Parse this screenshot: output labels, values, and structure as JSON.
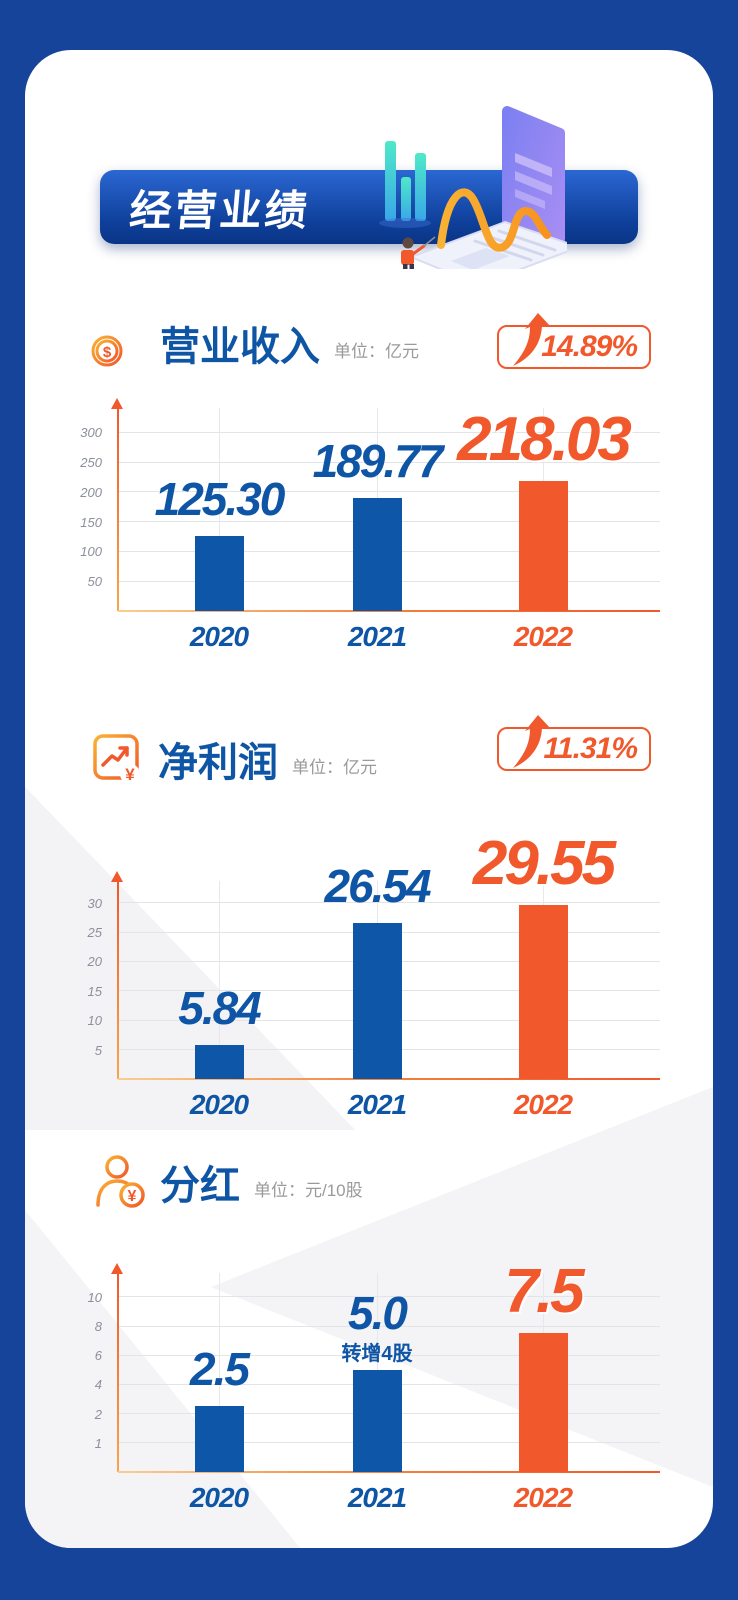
{
  "header": {
    "title": "经营业绩"
  },
  "colors": {
    "page_bg": "#17449b",
    "card_bg": "#ffffff",
    "blue": "#0f55a5",
    "bar_blue": "#0e56a7",
    "orange": "#f1582b",
    "unit_gray": "#9a9a9a",
    "tick_gray": "#8b909b",
    "grid": "#e3e4e8"
  },
  "sections": [
    {
      "title": "营业收入",
      "unit": "单位：亿元",
      "growth": "14.89%",
      "icon": "coin-stack-icon"
    },
    {
      "title": "净利润",
      "unit": "单位：亿元",
      "growth": "11.31%",
      "icon": "trend-chart-icon"
    },
    {
      "title": "分红",
      "unit": "单位：元/10股",
      "growth": null,
      "icon": "shareholder-coin-icon"
    }
  ],
  "chart_data": [
    {
      "type": "bar",
      "title": "营业收入",
      "unit": "亿元",
      "categories": [
        "2020",
        "2021",
        "2022"
      ],
      "values": [
        125.3,
        189.77,
        218.03
      ],
      "value_labels": [
        "125.30",
        "189.77",
        "218.03"
      ],
      "yticks": [
        50,
        100,
        150,
        200,
        250,
        300
      ],
      "ylim": [
        0,
        330
      ],
      "grid": true,
      "legend": "none",
      "highlight_index": 2,
      "growth_pct": "14.89%"
    },
    {
      "type": "bar",
      "title": "净利润",
      "unit": "亿元",
      "categories": [
        "2020",
        "2021",
        "2022"
      ],
      "values": [
        5.84,
        26.54,
        29.55
      ],
      "value_labels": [
        "5.84",
        "26.54",
        "29.55"
      ],
      "yticks": [
        5,
        10,
        15,
        20,
        25,
        30
      ],
      "ylim": [
        0,
        33
      ],
      "grid": true,
      "legend": "none",
      "highlight_index": 2,
      "growth_pct": "11.31%"
    },
    {
      "type": "bar",
      "title": "分红",
      "unit": "元/10股",
      "categories": [
        "2020",
        "2021",
        "2022"
      ],
      "values": [
        2.5,
        5.0,
        7.5
      ],
      "value_labels": [
        "2.5",
        "5.0",
        "7.5"
      ],
      "yticks": [
        1,
        2,
        4,
        6,
        8,
        10
      ],
      "grid": true,
      "legend": "none",
      "highlight_index": 2,
      "annotations": [
        {
          "category_index": 1,
          "text": "转增4股"
        }
      ]
    }
  ]
}
